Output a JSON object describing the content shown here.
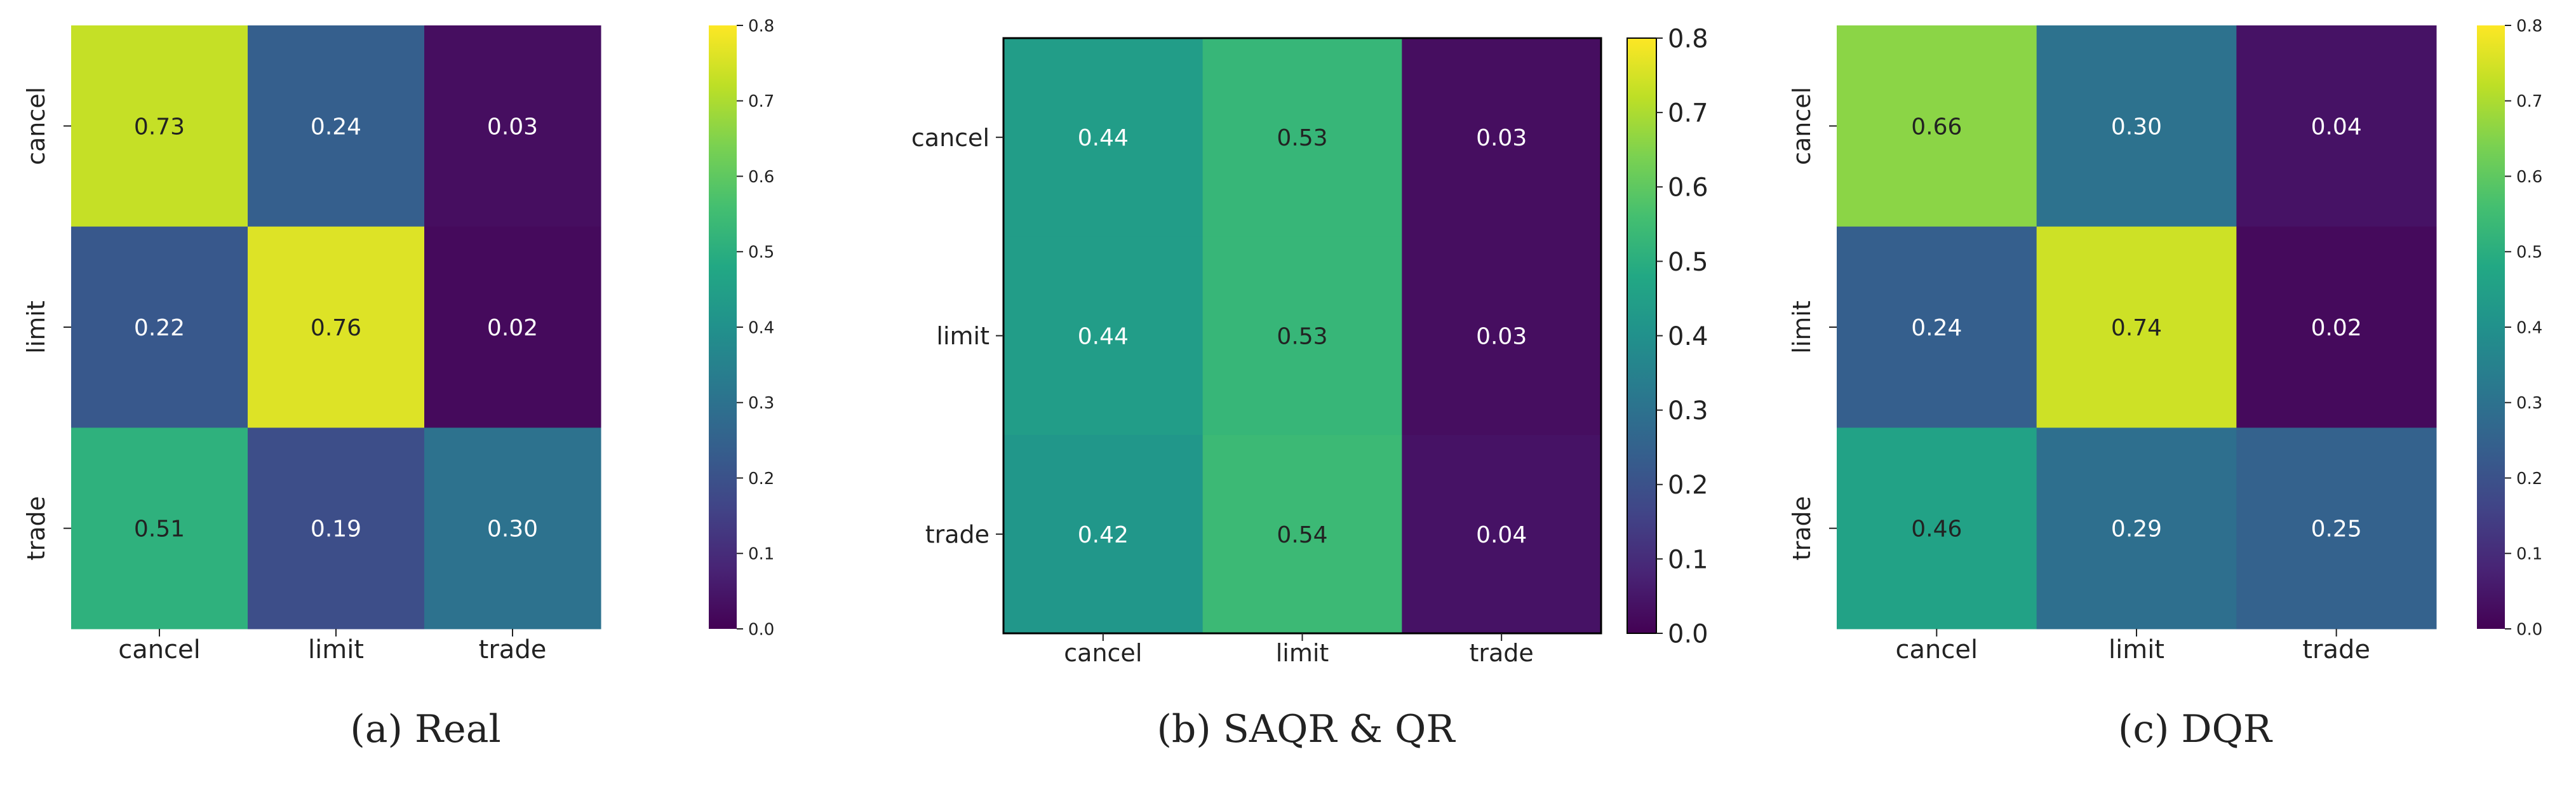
{
  "figure": {
    "colors": {
      "text_dark": "#222222",
      "text_light": "#ffffff",
      "frame": "#000000"
    },
    "colormap": "viridis"
  },
  "chart_data": [
    {
      "type": "heatmap",
      "caption": "(a) Real",
      "row_labels": [
        "cancel",
        "limit",
        "trade"
      ],
      "col_labels": [
        "cancel",
        "limit",
        "trade"
      ],
      "values": [
        [
          0.73,
          0.24,
          0.03
        ],
        [
          0.22,
          0.76,
          0.02
        ],
        [
          0.51,
          0.19,
          0.3
        ]
      ],
      "value_labels": [
        [
          "0.73",
          "0.24",
          "0.03"
        ],
        [
          "0.22",
          "0.76",
          "0.02"
        ],
        [
          "0.51",
          "0.19",
          "0.30"
        ]
      ],
      "colorbar": {
        "range": [
          0.0,
          0.8
        ],
        "ticks": [
          "0.0",
          "0.1",
          "0.2",
          "0.3",
          "0.4",
          "0.5",
          "0.6",
          "0.7",
          "0.8"
        ]
      },
      "row_labels_rotated": true,
      "frame": false
    },
    {
      "type": "heatmap",
      "caption": "(b) SAQR & QR",
      "row_labels": [
        "cancel",
        "limit",
        "trade"
      ],
      "col_labels": [
        "cancel",
        "limit",
        "trade"
      ],
      "values": [
        [
          0.44,
          0.53,
          0.03
        ],
        [
          0.44,
          0.53,
          0.03
        ],
        [
          0.42,
          0.54,
          0.04
        ]
      ],
      "value_labels": [
        [
          "0.44",
          "0.53",
          "0.03"
        ],
        [
          "0.44",
          "0.53",
          "0.03"
        ],
        [
          "0.42",
          "0.54",
          "0.04"
        ]
      ],
      "colorbar": {
        "range": [
          0.0,
          0.8
        ],
        "ticks": [
          "0.0",
          "0.1",
          "0.2",
          "0.3",
          "0.4",
          "0.5",
          "0.6",
          "0.7",
          "0.8"
        ]
      },
      "row_labels_rotated": false,
      "frame": true
    },
    {
      "type": "heatmap",
      "caption": "(c) DQR",
      "row_labels": [
        "cancel",
        "limit",
        "trade"
      ],
      "col_labels": [
        "cancel",
        "limit",
        "trade"
      ],
      "values": [
        [
          0.66,
          0.3,
          0.04
        ],
        [
          0.24,
          0.74,
          0.02
        ],
        [
          0.46,
          0.29,
          0.25
        ]
      ],
      "value_labels": [
        [
          "0.66",
          "0.30",
          "0.04"
        ],
        [
          "0.24",
          "0.74",
          "0.02"
        ],
        [
          "0.46",
          "0.29",
          "0.25"
        ]
      ],
      "colorbar": {
        "range": [
          0.0,
          0.8
        ],
        "ticks": [
          "0.0",
          "0.1",
          "0.2",
          "0.3",
          "0.4",
          "0.5",
          "0.6",
          "0.7",
          "0.8"
        ]
      },
      "row_labels_rotated": true,
      "frame": false
    }
  ]
}
